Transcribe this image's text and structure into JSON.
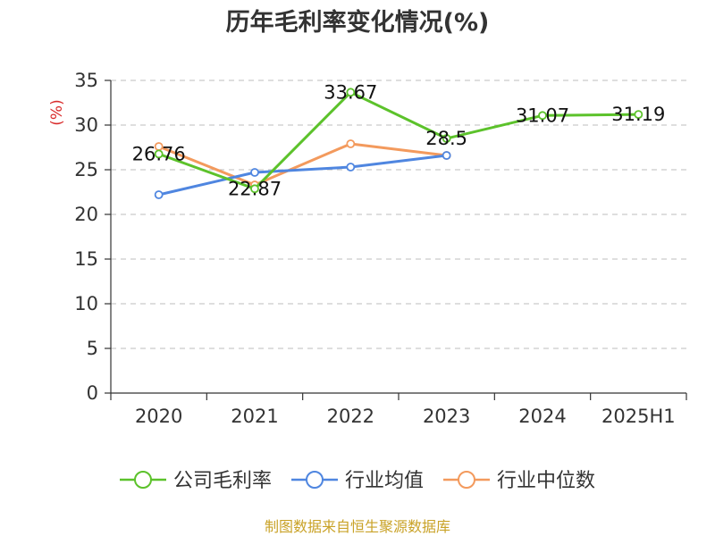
{
  "chart_data": {
    "type": "line",
    "title": "历年毛利率变化情况(%)",
    "ylabel": "(%)",
    "ylabel_color": "#d92b2b",
    "categories": [
      "2020",
      "2021",
      "2022",
      "2023",
      "2024",
      "2025H1"
    ],
    "ylim": [
      0,
      35
    ],
    "yticks": [
      0,
      5,
      10,
      15,
      20,
      25,
      30,
      35
    ],
    "grid": true,
    "legend_position": "bottom",
    "series": [
      {
        "name": "公司毛利率",
        "color": "#5cc22b",
        "values": [
          26.76,
          22.87,
          33.67,
          28.5,
          31.07,
          31.19
        ],
        "labels": [
          "26.76",
          "22.87",
          "33.67",
          "28.5",
          "31.07",
          "31.19"
        ]
      },
      {
        "name": "行业均值",
        "color": "#4f86e0",
        "values": [
          22.2,
          24.7,
          25.3,
          26.6,
          null,
          null
        ]
      },
      {
        "name": "行业中位数",
        "color": "#f39a5d",
        "values": [
          27.6,
          23.3,
          27.9,
          26.6,
          null,
          null
        ]
      }
    ]
  },
  "source": {
    "text": "制图数据来自恒生聚源数据库",
    "color": "#c9a227"
  }
}
